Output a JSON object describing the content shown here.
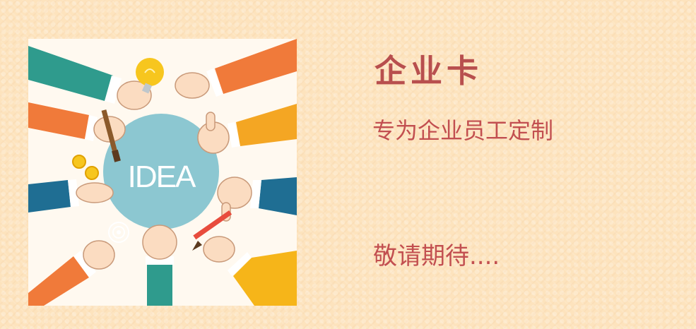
{
  "illustration": {
    "center_label": "IDEA",
    "colors": {
      "circle": "#8cc7d1",
      "teal": "#2f9b8d",
      "orange": "#f07a3a",
      "amber": "#f4a623",
      "yellow": "#f6b519",
      "navy": "#1f6e93",
      "skin": "#fbdcc1",
      "bulb": "#f7c61e"
    },
    "icons": [
      "lightbulb-icon",
      "paintbrush-icon",
      "coins-icon",
      "pencil-icon",
      "touch-ripple-icon"
    ]
  },
  "card": {
    "title": "企业卡",
    "subtitle": "专为企业员工定制",
    "coming_soon": "敬请期待...."
  }
}
